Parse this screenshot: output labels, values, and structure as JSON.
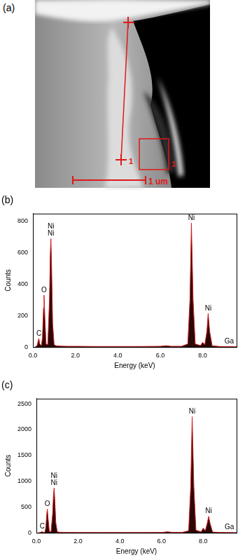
{
  "image_panel": {
    "label": "(a)",
    "line_marker": "1",
    "box_marker": "1",
    "scale_bar": "1 um"
  },
  "chart_data": [
    {
      "type": "line",
      "title": "(b)",
      "x_label": "Energy (keV)",
      "y_label": "Counts",
      "x": [
        0.1,
        0.2,
        0.25,
        0.28,
        0.32,
        0.4,
        0.45,
        0.5,
        0.525,
        0.56,
        0.62,
        0.7,
        0.78,
        0.82,
        0.85,
        0.88,
        0.93,
        1.0,
        1.1,
        1.3,
        1.6,
        2.0,
        3.0,
        4.0,
        5.0,
        6.0,
        6.3,
        6.5,
        7.0,
        7.3,
        7.4,
        7.47,
        7.55,
        7.65,
        7.9,
        8.0,
        8.1,
        8.2,
        8.26,
        8.33,
        8.45,
        8.8,
        9.2,
        9.25,
        9.3,
        9.6
      ],
      "values": [
        0,
        10,
        40,
        55,
        20,
        10,
        60,
        250,
        330,
        200,
        20,
        15,
        300,
        600,
        690,
        520,
        150,
        15,
        8,
        6,
        5,
        5,
        4,
        4,
        4,
        5,
        9,
        5,
        5,
        20,
        300,
        790,
        300,
        20,
        10,
        30,
        15,
        100,
        215,
        100,
        8,
        4,
        3,
        4,
        3,
        2
      ],
      "color": "#d42020",
      "xlim": [
        0,
        9.6
      ],
      "xticks": [
        {
          "value": 0,
          "label": "0.0"
        },
        {
          "value": 2,
          "label": "2.0"
        },
        {
          "value": 4,
          "label": "4.0"
        },
        {
          "value": 6,
          "label": "6.0"
        },
        {
          "value": 8,
          "label": "8.0"
        }
      ],
      "ylim": [
        0,
        850
      ],
      "yticks": [
        0,
        200,
        400,
        600,
        800
      ],
      "grid": false,
      "peak_labels": [
        {
          "text": "C",
          "x": 0.28
        },
        {
          "text": "O",
          "x": 0.525
        },
        {
          "text": "Ni",
          "x": 0.85
        },
        {
          "text": "Ni",
          "x": 0.85
        },
        {
          "text": "Ni",
          "x": 7.47
        },
        {
          "text": "Ni",
          "x": 8.26
        },
        {
          "text": "Ga",
          "x": 9.25
        }
      ]
    },
    {
      "type": "line",
      "title": "(c)",
      "x_label": "Energy (keV)",
      "y_label": "Counts",
      "x": [
        0.1,
        0.2,
        0.25,
        0.28,
        0.32,
        0.4,
        0.45,
        0.5,
        0.525,
        0.56,
        0.62,
        0.7,
        0.78,
        0.82,
        0.85,
        0.88,
        0.93,
        1.0,
        1.1,
        1.3,
        1.6,
        2.0,
        3.0,
        4.0,
        5.0,
        6.0,
        6.3,
        6.5,
        7.0,
        7.3,
        7.4,
        7.47,
        7.55,
        7.65,
        7.9,
        8.0,
        8.1,
        8.2,
        8.26,
        8.33,
        8.45,
        8.8,
        9.2,
        9.25,
        9.3,
        9.6
      ],
      "values": [
        0,
        8,
        18,
        22,
        10,
        8,
        100,
        380,
        460,
        280,
        30,
        20,
        380,
        760,
        870,
        650,
        200,
        20,
        12,
        10,
        8,
        7,
        7,
        7,
        7,
        8,
        20,
        10,
        10,
        40,
        900,
        2250,
        900,
        50,
        20,
        90,
        40,
        200,
        320,
        180,
        15,
        8,
        6,
        8,
        6,
        4
      ],
      "color": "#d42020",
      "xlim": [
        0,
        9.6
      ],
      "xticks": [
        {
          "value": 0,
          "label": "0.0"
        },
        {
          "value": 2,
          "label": "2.0"
        },
        {
          "value": 4,
          "label": "4.0"
        },
        {
          "value": 6,
          "label": "6.0"
        },
        {
          "value": 8,
          "label": "8.0"
        }
      ],
      "ylim": [
        0,
        2600
      ],
      "yticks": [
        0,
        500,
        1000,
        1500,
        2000,
        2500
      ],
      "grid": false,
      "peak_labels": [
        {
          "text": "C",
          "x": 0.28
        },
        {
          "text": "O",
          "x": 0.525
        },
        {
          "text": "Ni",
          "x": 0.85
        },
        {
          "text": "Ni",
          "x": 0.85
        },
        {
          "text": "Ni",
          "x": 7.47
        },
        {
          "text": "Ni",
          "x": 8.26
        },
        {
          "text": "Ga",
          "x": 9.25
        }
      ]
    }
  ]
}
